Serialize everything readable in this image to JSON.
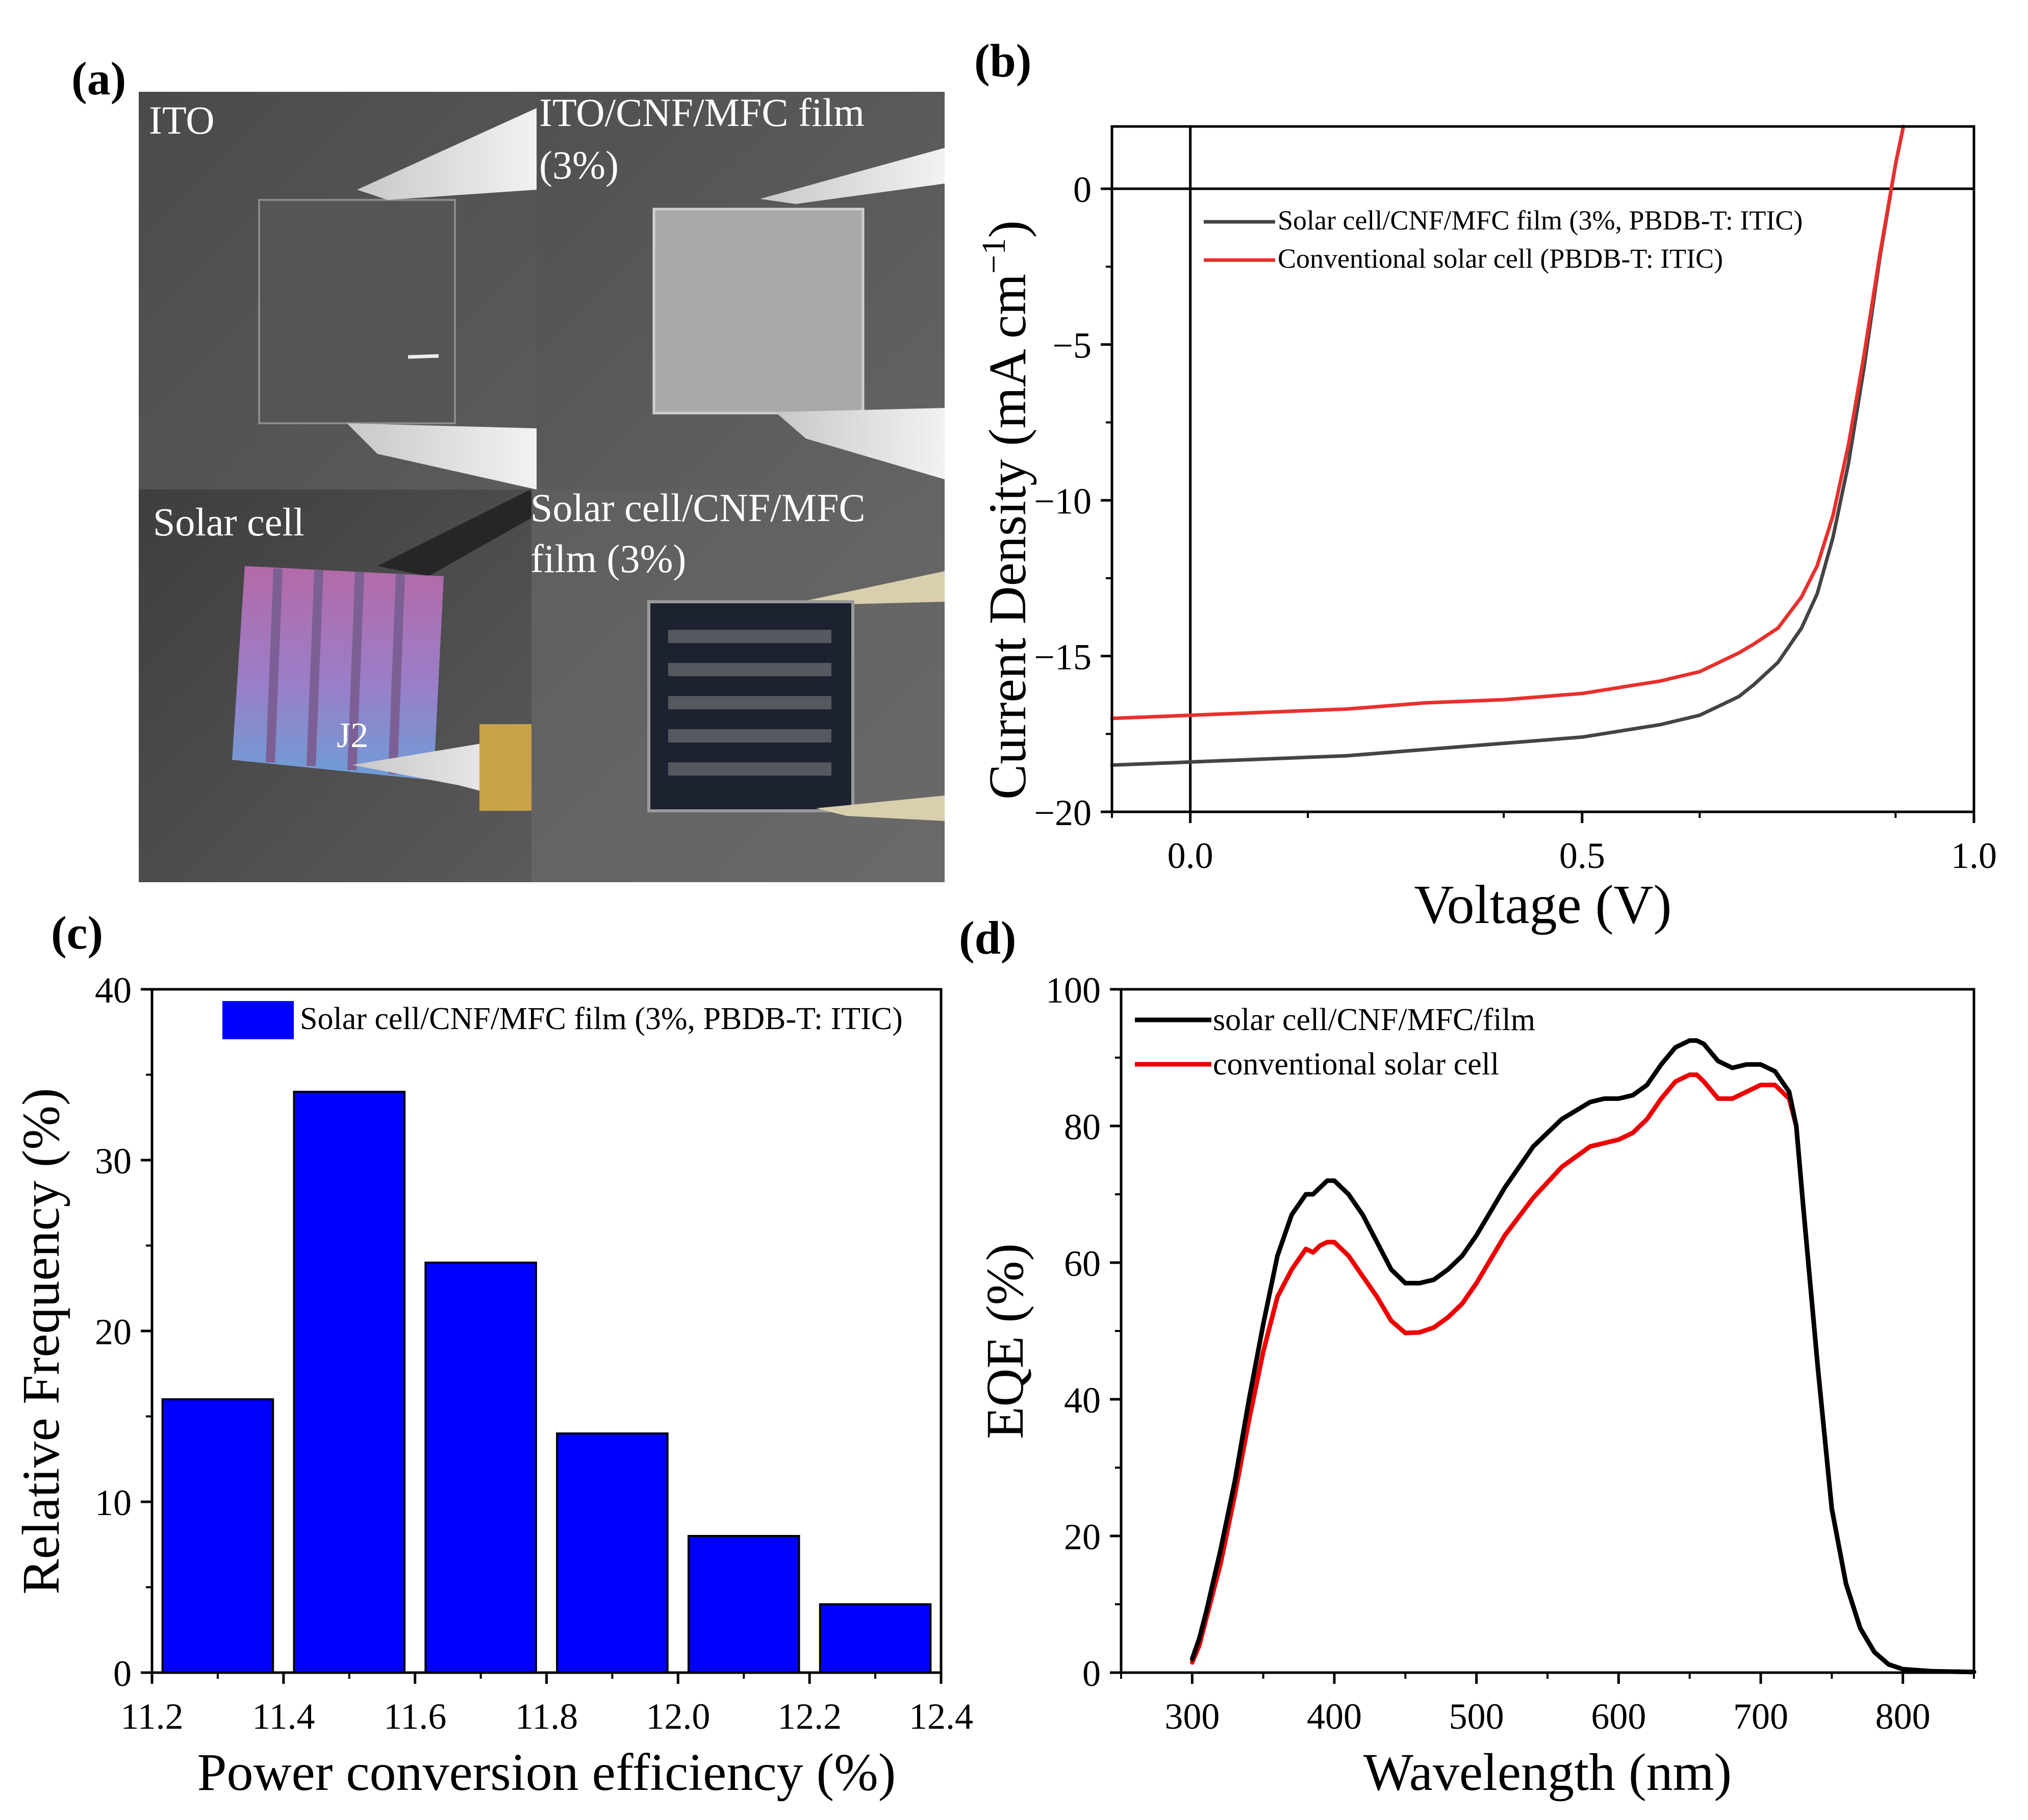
{
  "panels": {
    "a": {
      "label": "(a)",
      "photos": [
        {
          "caption": "ITO"
        },
        {
          "caption_line1": "ITO/CNF/MFC film",
          "caption_line2": "(3%)"
        },
        {
          "caption": "Solar cell"
        },
        {
          "caption_line1": "Solar cell/CNF/MFC",
          "caption_line2": "film (3%)"
        }
      ],
      "sample_mark": "J2"
    },
    "b": {
      "label": "(b)"
    },
    "c": {
      "label": "(c)"
    },
    "d": {
      "label": "(d)"
    }
  },
  "colors": {
    "black": "#000000",
    "gray": "#444444",
    "red": "#e8302c",
    "pure_red": "#ee0000",
    "blue": "#0000ff"
  },
  "chart_data": [
    {
      "id": "b",
      "type": "line",
      "xlabel": "Voltage (V)",
      "ylabel": "Current Density (mA cm",
      "ylabel_sup": "−1",
      "ylabel_close": ")",
      "xlim": [
        -0.1,
        1.0
      ],
      "ylim": [
        -20,
        2
      ],
      "xticks": [
        0.0,
        0.5,
        1.0
      ],
      "xtick_labels": [
        "0.0",
        "0.5",
        "1.0"
      ],
      "yticks": [
        0,
        -5,
        -10,
        -15,
        -20
      ],
      "ytick_labels": [
        "0",
        "−5",
        "−10",
        "−15",
        "−20"
      ],
      "legend_position": "upper-left",
      "series": [
        {
          "name": "Solar cell/CNF/MFC film (3%, PBDB-T: ITIC)",
          "color": "#444444",
          "x": [
            -0.1,
            0.0,
            0.1,
            0.2,
            0.3,
            0.4,
            0.5,
            0.55,
            0.6,
            0.65,
            0.7,
            0.72,
            0.75,
            0.78,
            0.8,
            0.82,
            0.84,
            0.86,
            0.88,
            0.9,
            0.91
          ],
          "y": [
            -18.5,
            -18.4,
            -18.3,
            -18.2,
            -18.0,
            -17.8,
            -17.6,
            -17.4,
            -17.2,
            -16.9,
            -16.3,
            -15.9,
            -15.2,
            -14.1,
            -13.0,
            -11.2,
            -8.8,
            -5.7,
            -2.2,
            0.8,
            2.0
          ]
        },
        {
          "name": "Conventional solar cell (PBDB-T: ITIC)",
          "color": "#e8302c",
          "x": [
            -0.1,
            0.0,
            0.1,
            0.2,
            0.3,
            0.4,
            0.5,
            0.55,
            0.6,
            0.65,
            0.7,
            0.72,
            0.75,
            0.78,
            0.8,
            0.82,
            0.84,
            0.86,
            0.88,
            0.9,
            0.91
          ],
          "y": [
            -17.0,
            -16.9,
            -16.8,
            -16.7,
            -16.5,
            -16.4,
            -16.2,
            -16.0,
            -15.8,
            -15.5,
            -14.9,
            -14.6,
            -14.1,
            -13.1,
            -12.1,
            -10.5,
            -8.2,
            -5.3,
            -2.1,
            0.8,
            2.0
          ]
        }
      ]
    },
    {
      "id": "c",
      "type": "bar",
      "xlabel": "Power conversion efficiency (%)",
      "ylabel": "Relative Frequency (%)",
      "xlim": [
        11.2,
        12.4
      ],
      "ylim": [
        0,
        40
      ],
      "xticks": [
        11.2,
        11.4,
        11.6,
        11.8,
        12.0,
        12.2,
        12.4
      ],
      "xtick_labels": [
        "11.2",
        "11.4",
        "11.6",
        "11.8",
        "12.0",
        "12.2",
        "12.4"
      ],
      "yticks": [
        0,
        10,
        20,
        30,
        40
      ],
      "ytick_labels": [
        "0",
        "10",
        "20",
        "30",
        "40"
      ],
      "legend_position": "top-right",
      "series": [
        {
          "name": "Solar cell/CNF/MFC film (3%, PBDB-T: ITIC)",
          "color": "#0000ff",
          "bin_start": [
            11.2,
            11.4,
            11.6,
            11.8,
            12.0,
            12.2
          ],
          "bin_end": [
            11.4,
            11.6,
            11.8,
            12.0,
            12.2,
            12.4
          ],
          "values": [
            16,
            34,
            24,
            14,
            8,
            4
          ]
        }
      ]
    },
    {
      "id": "d",
      "type": "line",
      "xlabel": "Wavelength (nm)",
      "ylabel": "EQE (%)",
      "xlim": [
        250,
        850
      ],
      "ylim": [
        0,
        100
      ],
      "xticks": [
        300,
        400,
        500,
        600,
        700,
        800
      ],
      "xtick_labels": [
        "300",
        "400",
        "500",
        "600",
        "700",
        "800"
      ],
      "yticks": [
        0,
        20,
        40,
        60,
        80,
        100
      ],
      "ytick_labels": [
        "0",
        "20",
        "40",
        "60",
        "80",
        "100"
      ],
      "legend_position": "top-left",
      "series": [
        {
          "name": "solar cell/CNF/MFC/film",
          "color": "#000000",
          "x": [
            300,
            305,
            310,
            320,
            330,
            340,
            350,
            360,
            370,
            380,
            385,
            390,
            395,
            400,
            410,
            420,
            430,
            440,
            450,
            460,
            470,
            480,
            490,
            500,
            520,
            540,
            560,
            580,
            590,
            600,
            610,
            620,
            630,
            640,
            650,
            655,
            660,
            670,
            680,
            690,
            700,
            710,
            720,
            725,
            730,
            740,
            750,
            760,
            770,
            780,
            790,
            800,
            820,
            850
          ],
          "y": [
            2,
            5,
            9,
            18,
            28,
            40,
            51,
            61,
            67,
            70,
            70,
            71,
            72,
            72,
            70,
            67,
            63,
            59,
            57,
            57,
            57.5,
            59,
            61,
            64,
            71,
            77,
            81,
            83.5,
            84,
            84,
            84.5,
            86,
            89,
            91.5,
            92.5,
            92.5,
            92,
            89.5,
            88.5,
            89,
            89,
            88,
            85,
            80,
            68,
            45,
            24,
            13,
            6.5,
            3,
            1.2,
            0.5,
            0.2,
            0.1
          ]
        },
        {
          "name": "conventional solar cell",
          "color": "#ee0000",
          "x": [
            300,
            305,
            310,
            320,
            330,
            340,
            350,
            360,
            370,
            380,
            385,
            390,
            395,
            400,
            410,
            420,
            430,
            440,
            450,
            460,
            470,
            480,
            490,
            500,
            520,
            540,
            560,
            580,
            590,
            600,
            610,
            620,
            630,
            640,
            650,
            655,
            660,
            670,
            680,
            690,
            700,
            710,
            720,
            725,
            730,
            740,
            750,
            760,
            770,
            780,
            790,
            800,
            820,
            850
          ],
          "y": [
            1.5,
            4,
            8,
            16,
            26,
            37,
            47,
            55,
            59,
            62,
            61.5,
            62.5,
            63,
            63,
            61,
            58,
            55,
            51.5,
            49.7,
            49.8,
            50.5,
            52,
            54,
            57,
            64,
            69.5,
            74,
            77,
            77.5,
            78,
            79,
            81,
            84,
            86.5,
            87.5,
            87.5,
            86.5,
            84,
            84,
            85,
            86,
            86,
            84,
            80,
            68,
            45,
            24,
            13,
            6.5,
            3,
            1.2,
            0.5,
            0.2,
            0.1
          ]
        }
      ]
    }
  ]
}
